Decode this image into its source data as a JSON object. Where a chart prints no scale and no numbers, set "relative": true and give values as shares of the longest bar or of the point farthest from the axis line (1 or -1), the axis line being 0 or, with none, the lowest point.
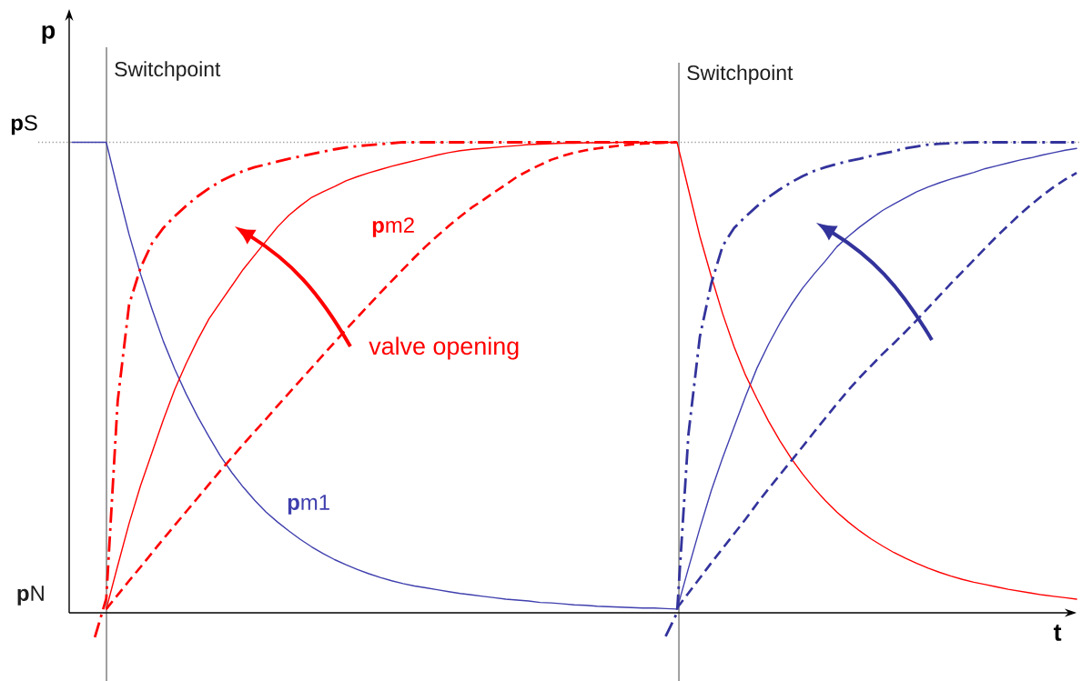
{
  "chart_data": {
    "type": "line",
    "relative": true,
    "xlabel": "t",
    "ylabel": "p",
    "marker": "none",
    "categories": [
      null,
      null,
      null,
      null,
      null,
      null,
      null,
      null,
      null,
      null,
      null,
      null,
      null,
      null,
      null,
      null,
      null,
      null,
      null,
      null,
      null,
      null,
      null,
      null,
      null,
      null,
      null,
      null,
      null,
      null,
      null,
      null,
      null,
      null,
      null,
      null,
      null,
      null,
      null,
      null,
      null,
      null,
      null,
      null,
      null,
      null,
      null,
      null,
      null,
      null,
      null,
      null,
      null,
      null,
      null,
      null,
      null,
      null,
      null,
      null,
      null,
      null,
      null,
      null,
      null,
      null,
      null,
      null,
      null,
      null,
      null,
      null,
      null,
      null,
      null,
      null,
      null,
      null,
      null,
      null,
      null,
      null,
      null,
      null,
      null,
      null,
      null,
      null,
      null
    ],
    "series": [
      {
        "name": "**p**m1",
        "color": "#3f3fae",
        "line_style": "solid",
        "values": [
          1,
          1,
          1,
          1,
          0.9,
          0.804,
          0.72,
          0.646,
          0.577,
          0.518,
          0.465,
          0.417,
          0.374,
          0.333,
          0.298,
          0.267,
          0.239,
          0.214,
          0.193,
          0.174,
          0.156,
          0.14,
          0.126,
          0.113,
          0.102,
          0.092,
          0.083,
          0.075,
          0.068,
          0.062,
          0.057,
          0.053,
          0.049,
          0.045,
          0.041,
          0.038,
          0.035,
          0.032,
          0.029,
          0.027,
          0.025,
          0.022,
          0.021,
          0.019,
          0.017,
          0.016,
          0.014,
          0.013,
          0.012,
          0.011,
          0.01,
          0.01,
          0.009,
          0.008,
          0.095,
          0.18,
          0.26,
          0.33,
          0.395,
          0.46,
          0.52,
          0.57,
          0.615,
          0.655,
          0.69,
          0.72,
          0.748,
          0.778,
          0.8,
          0.82,
          0.838,
          0.855,
          0.869,
          0.882,
          0.895,
          0.905,
          0.914,
          0.922,
          0.929,
          0.936,
          0.944,
          0.95,
          0.956,
          0.962,
          0.967,
          0.973,
          0.978,
          0.983,
          0.987
        ]
      },
      {
        "name": "**p**m2",
        "color": "#ff0000",
        "line_style": "solid",
        "values": [
          null,
          null,
          null,
          0.008,
          0.1,
          0.19,
          0.27,
          0.34,
          0.41,
          0.475,
          0.53,
          0.58,
          0.625,
          0.66,
          0.695,
          0.73,
          0.76,
          0.79,
          0.82,
          0.845,
          0.865,
          0.883,
          0.895,
          0.906,
          0.918,
          0.927,
          0.935,
          0.942,
          0.949,
          0.955,
          0.961,
          0.967,
          0.973,
          0.978,
          0.982,
          0.985,
          0.987,
          0.989,
          0.991,
          0.993,
          0.995,
          0.996,
          0.997,
          0.998,
          0.998,
          0.999,
          0.999,
          0.999,
          1,
          1,
          1,
          1,
          1,
          1,
          0.9,
          0.8,
          0.715,
          0.635,
          0.565,
          0.505,
          0.455,
          0.408,
          0.366,
          0.328,
          0.295,
          0.265,
          0.238,
          0.214,
          0.193,
          0.174,
          0.157,
          0.142,
          0.128,
          0.116,
          0.105,
          0.095,
          0.086,
          0.078,
          0.071,
          0.065,
          0.06,
          0.055,
          0.05,
          0.046,
          0.042,
          0.038,
          0.035,
          0.032,
          0.029
        ]
      },
      {
        "color": "#ff0000",
        "line_style": "dashed",
        "values": [
          null,
          null,
          null,
          0.008,
          0.038,
          0.068,
          0.097,
          0.127,
          0.157,
          0.186,
          0.215,
          0.244,
          0.273,
          0.302,
          0.33,
          0.358,
          0.385,
          0.412,
          0.44,
          0.467,
          0.494,
          0.521,
          0.548,
          0.575,
          0.602,
          0.628,
          0.654,
          0.68,
          0.705,
          0.73,
          0.755,
          0.779,
          0.801,
          0.822,
          0.842,
          0.861,
          0.877,
          0.894,
          0.91,
          0.927,
          0.94,
          0.952,
          0.963,
          0.971,
          0.978,
          0.983,
          0.987,
          0.99,
          0.993,
          0.995,
          0.997,
          0.998,
          0.999,
          1,
          null,
          null,
          null,
          null,
          null,
          null,
          null,
          null,
          null,
          null,
          null,
          null,
          null,
          null,
          null,
          null,
          null,
          null,
          null,
          null,
          null,
          null,
          null,
          null,
          null,
          null,
          null,
          null,
          null,
          null,
          null,
          null,
          null,
          null,
          null
        ]
      },
      {
        "color": "#ff0000",
        "line_style": "dashdot",
        "values": [
          null,
          null,
          -0.052,
          0.03,
          0.45,
          0.655,
          0.733,
          0.785,
          0.818,
          0.843,
          0.865,
          0.885,
          0.902,
          0.917,
          0.929,
          0.939,
          0.947,
          0.953,
          0.959,
          0.965,
          0.97,
          0.975,
          0.98,
          0.985,
          0.989,
          0.992,
          0.994,
          0.996,
          0.998,
          1,
          1,
          1,
          1,
          1,
          1,
          1,
          1,
          1,
          1,
          1,
          1,
          1,
          1,
          1,
          1,
          1,
          1,
          1,
          1,
          1,
          1,
          1,
          1,
          1,
          null,
          null,
          null,
          null,
          null,
          null,
          null,
          null,
          null,
          null,
          null,
          null,
          null,
          null,
          null,
          null,
          null,
          null,
          null,
          null,
          null,
          null,
          null,
          null,
          null,
          null,
          null,
          null,
          null,
          null,
          null,
          null,
          null,
          null,
          null
        ]
      },
      {
        "color": "#33339c",
        "line_style": "dashed",
        "values": [
          null,
          null,
          null,
          null,
          null,
          null,
          null,
          null,
          null,
          null,
          null,
          null,
          null,
          null,
          null,
          null,
          null,
          null,
          null,
          null,
          null,
          null,
          null,
          null,
          null,
          null,
          null,
          null,
          null,
          null,
          null,
          null,
          null,
          null,
          null,
          null,
          null,
          null,
          null,
          null,
          null,
          null,
          null,
          null,
          null,
          null,
          null,
          null,
          null,
          null,
          null,
          null,
          null,
          0.01,
          0.042,
          0.074,
          0.106,
          0.137,
          0.168,
          0.199,
          0.232,
          0.263,
          0.293,
          0.323,
          0.353,
          0.384,
          0.414,
          0.444,
          0.473,
          0.5,
          0.525,
          0.55,
          0.573,
          0.597,
          0.622,
          0.648,
          0.674,
          0.7,
          0.725,
          0.75,
          0.775,
          0.8,
          0.823,
          0.846,
          0.867,
          0.887,
          0.905,
          0.921,
          0.935
        ]
      },
      {
        "color": "#33339c",
        "line_style": "dashdot",
        "values": [
          null,
          null,
          null,
          null,
          null,
          null,
          null,
          null,
          null,
          null,
          null,
          null,
          null,
          null,
          null,
          null,
          null,
          null,
          null,
          null,
          null,
          null,
          null,
          null,
          null,
          null,
          null,
          null,
          null,
          null,
          null,
          null,
          null,
          null,
          null,
          null,
          null,
          null,
          null,
          null,
          null,
          null,
          null,
          null,
          null,
          null,
          null,
          null,
          null,
          null,
          null,
          null,
          -0.05,
          0,
          0.38,
          0.587,
          0.7,
          0.78,
          0.818,
          0.842,
          0.864,
          0.883,
          0.9,
          0.915,
          0.928,
          0.939,
          0.947,
          0.954,
          0.96,
          0.965,
          0.971,
          0.976,
          0.981,
          0.987,
          0.991,
          0.995,
          0.997,
          0.998,
          0.999,
          1,
          1,
          1,
          1,
          1,
          1,
          1,
          1,
          1,
          1
        ]
      }
    ],
    "ref_lines": [
      {
        "axis": "y",
        "value": 1,
        "label": "**p**S",
        "color": "#9a9a9a",
        "line_style": "dotted"
      }
    ],
    "annotations": [
      "Switchpoint",
      "Switchpoint",
      "valve opening",
      "**p**N"
    ]
  }
}
